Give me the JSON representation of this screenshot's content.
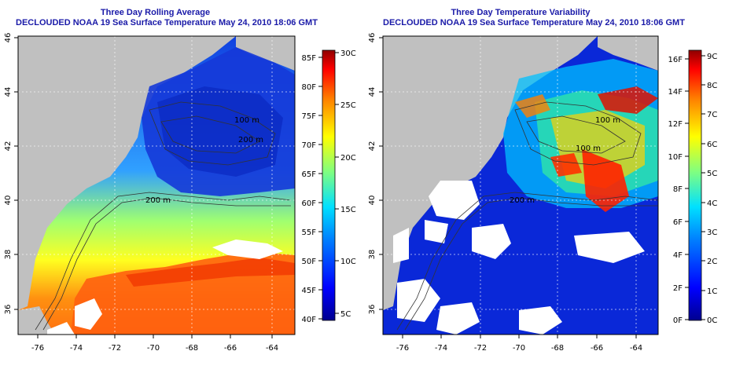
{
  "panels": [
    {
      "id": "left",
      "title_line1": "Three Day Rolling Average",
      "title_line2": "DECLOUDED NOAA 19 Sea Surface Temperature May 24, 2010 18:06 GMT",
      "contour_labels": [
        "100 m",
        "200 m",
        "100 m",
        "200 m",
        "200 m"
      ],
      "colorbar_f": [
        "85F",
        "80F",
        "75F",
        "70F",
        "65F",
        "60F",
        "55F",
        "50F",
        "45F",
        "40F"
      ],
      "colorbar_c": [
        "30C",
        "25C",
        "20C",
        "15C",
        "10C",
        "5C"
      ]
    },
    {
      "id": "right",
      "title_line1": "Three Day Temperature Variability",
      "title_line2": "DECLOUDED NOAA 19 Sea Surface Temperature May 24, 2010 18:06 GMT",
      "contour_labels": [
        "100 m",
        "200 m",
        "100 m",
        "200 m",
        "200 m"
      ],
      "colorbar_f": [
        "16F",
        "14F",
        "12F",
        "10F",
        "8F",
        "6F",
        "4F",
        "2F",
        "0F"
      ],
      "colorbar_c": [
        "9C",
        "8C",
        "7C",
        "6C",
        "5C",
        "4C",
        "3C",
        "2C",
        "1C",
        "0C"
      ]
    }
  ],
  "axes": {
    "lon_ticks": [
      "-76",
      "-74",
      "-72",
      "-70",
      "-68",
      "-66",
      "-64"
    ],
    "lat_ticks": [
      "46",
      "44",
      "42",
      "40",
      "38",
      "36"
    ]
  },
  "colors": {
    "title": "#1a1aa8",
    "land": "#c0c0c0",
    "contour": "#333333"
  }
}
